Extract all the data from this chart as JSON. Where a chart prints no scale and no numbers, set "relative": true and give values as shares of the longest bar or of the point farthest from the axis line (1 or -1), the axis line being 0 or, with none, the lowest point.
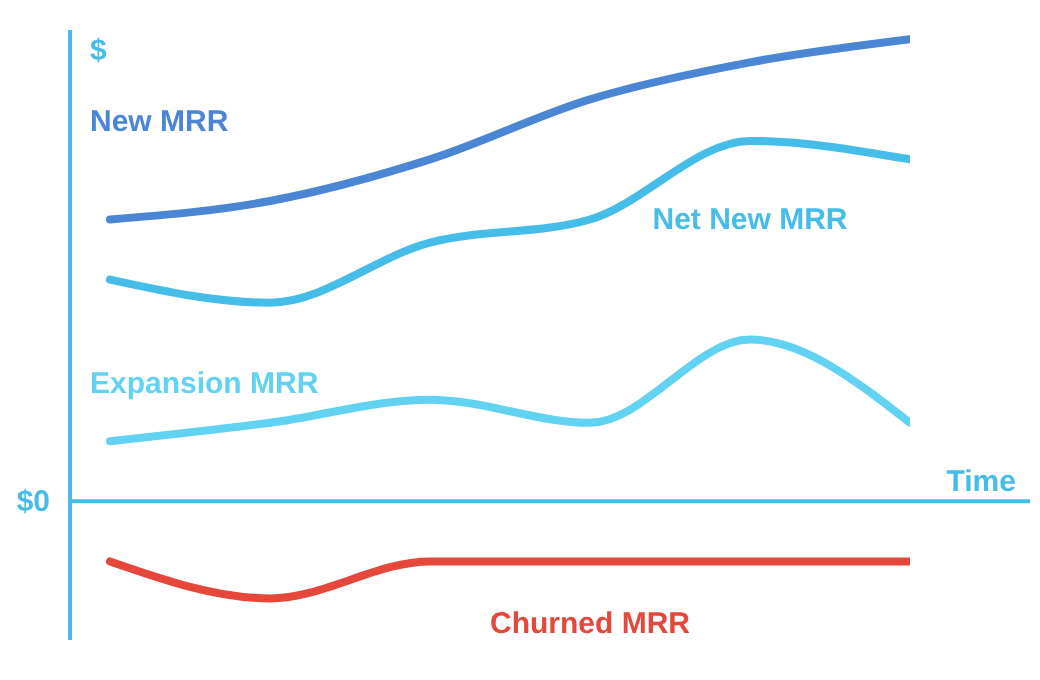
{
  "chart_data": {
    "type": "line",
    "relative": true,
    "ylabel": "$",
    "xlabel": "Time",
    "ref_lines": [
      {
        "axis": "y",
        "value": 0,
        "label": "$0",
        "color": "#45bde8"
      }
    ],
    "marker": "none",
    "categories": [
      null,
      null,
      null,
      null,
      null,
      null
    ],
    "series": [
      {
        "name": "New MRR",
        "color": "#4a86d4",
        "values": [
          0.61,
          0.65,
          0.74,
          0.87,
          0.95,
          1
        ]
      },
      {
        "name": "Net New MRR",
        "color": "#45bde8",
        "values": [
          0.48,
          0.43,
          0.56,
          0.61,
          0.78,
          0.74
        ]
      },
      {
        "name": "Expansion MRR",
        "color": "#62d2f2",
        "values": [
          0.13,
          0.17,
          0.22,
          0.17,
          0.35,
          0.17
        ]
      },
      {
        "name": "Churned MRR",
        "color": "#e5483a",
        "values": [
          -0.13,
          -0.21,
          -0.13,
          -0.13,
          -0.13,
          -0.13
        ]
      }
    ]
  }
}
